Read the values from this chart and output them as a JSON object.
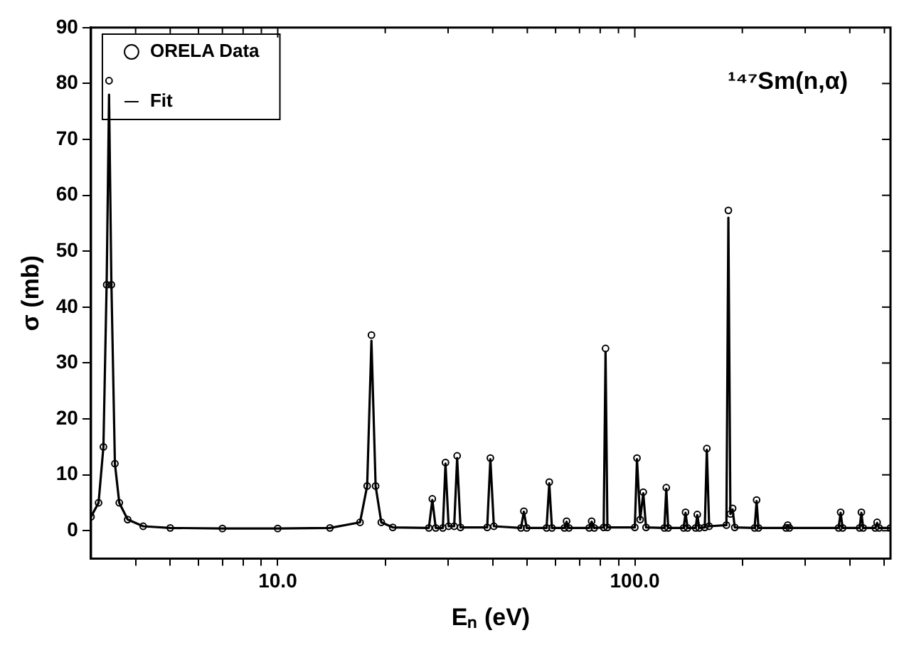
{
  "chart_data": {
    "type": "line",
    "xlabel": "Eₙ (eV)",
    "ylabel": "σ (mb)",
    "annotations": [
      "¹⁴⁷Sm(n,α)"
    ],
    "log": "x",
    "grid": false,
    "legend": "top left",
    "xlim": [
      3,
      520
    ],
    "ylim": [
      -5,
      90
    ],
    "xticks": [
      {
        "value": 4,
        "label": null
      },
      {
        "value": 5,
        "label": null
      },
      {
        "value": 6,
        "label": null
      },
      {
        "value": 7,
        "label": null
      },
      {
        "value": 8,
        "label": null
      },
      {
        "value": 9,
        "label": null
      },
      {
        "value": 10,
        "label": "10.0"
      },
      {
        "value": 20,
        "label": null
      },
      {
        "value": 30,
        "label": null
      },
      {
        "value": 40,
        "label": null
      },
      {
        "value": 50,
        "label": null
      },
      {
        "value": 60,
        "label": null
      },
      {
        "value": 70,
        "label": null
      },
      {
        "value": 80,
        "label": null
      },
      {
        "value": 90,
        "label": null
      },
      {
        "value": 100,
        "label": "100.0"
      },
      {
        "value": 200,
        "label": null
      },
      {
        "value": 300,
        "label": null
      },
      {
        "value": 400,
        "label": null
      },
      {
        "value": 500,
        "label": null
      }
    ],
    "yticks": [
      0,
      10,
      20,
      30,
      40,
      50,
      60,
      70,
      80,
      90
    ],
    "series": [
      {
        "name": "ORELA Data",
        "type": "scatter",
        "marker": "circle",
        "color": "#000000",
        "x": [
          3.0,
          3.15,
          3.25,
          3.32,
          3.37,
          3.42,
          3.5,
          3.6,
          3.8,
          4.2,
          5,
          7,
          10,
          14,
          17,
          17.8,
          18.3,
          18.8,
          19.5,
          21,
          26.5,
          27.1,
          27.7,
          29,
          29.5,
          30.1,
          31.2,
          31.8,
          32.5,
          38.6,
          39.4,
          40.3,
          48,
          48.9,
          49.8,
          56.6,
          57.6,
          58.6,
          63.5,
          64.4,
          65.4,
          74.5,
          75.7,
          77,
          81.8,
          82.8,
          83.8,
          100,
          101.4,
          103.5,
          105.6,
          107.5,
          121,
          122.5,
          124,
          137,
          138.7,
          140.5,
          148,
          149.6,
          151.5,
          157,
          159.1,
          161.5,
          180.5,
          182.8,
          185.2,
          187.9,
          190.5,
          216.5,
          219.3,
          222,
          265,
          268,
          271,
          372,
          377,
          382,
          426,
          431,
          436,
          471,
          477,
          483,
          520
        ],
        "values": [
          2.5,
          5,
          15,
          44,
          80.5,
          44,
          12,
          5,
          2,
          0.8,
          0.5,
          0.4,
          0.4,
          0.5,
          1.5,
          8,
          35,
          8,
          1.5,
          0.6,
          0.5,
          5.7,
          0.5,
          0.5,
          12.2,
          0.8,
          0.8,
          13.4,
          0.6,
          0.6,
          13,
          0.8,
          0.5,
          3.5,
          0.5,
          0.5,
          8.7,
          0.5,
          0.5,
          1.7,
          0.5,
          0.5,
          1.7,
          0.5,
          0.6,
          32.6,
          0.6,
          0.6,
          13,
          2,
          6.9,
          0.6,
          0.5,
          7.7,
          0.5,
          0.5,
          3.3,
          0.5,
          0.5,
          2.9,
          0.5,
          0.6,
          14.7,
          0.8,
          1,
          57.3,
          3,
          4,
          0.6,
          0.5,
          5.5,
          0.5,
          0.5,
          1,
          0.5,
          0.5,
          3.3,
          0.5,
          0.5,
          3.3,
          0.5,
          0.5,
          1.5,
          0.5,
          0.5
        ]
      },
      {
        "name": "Fit",
        "marker": "none",
        "line_style": "solid",
        "color": "#000000",
        "x": [
          3.0,
          3.15,
          3.25,
          3.32,
          3.37,
          3.42,
          3.5,
          3.6,
          3.8,
          4.2,
          5,
          7,
          10,
          14,
          17,
          17.8,
          18.3,
          18.8,
          19.5,
          21,
          26.5,
          27.1,
          27.7,
          29,
          29.5,
          30.1,
          31.2,
          31.8,
          32.5,
          38.6,
          39.4,
          40.3,
          48,
          48.9,
          49.8,
          56.6,
          57.6,
          58.6,
          63.5,
          64.4,
          65.4,
          74.5,
          75.7,
          77,
          81.8,
          82.8,
          83.8,
          100,
          101.4,
          103.5,
          105.6,
          107.5,
          121,
          122.5,
          124,
          137,
          138.7,
          140.5,
          148,
          149.6,
          151.5,
          157,
          159.1,
          161.5,
          180.5,
          182.8,
          185.2,
          187.9,
          190.5,
          216.5,
          219.3,
          222,
          265,
          268,
          271,
          372,
          377,
          382,
          426,
          431,
          436,
          471,
          477,
          483,
          520
        ],
        "values": [
          2.5,
          5,
          15,
          45,
          78,
          45,
          12,
          5,
          2,
          0.8,
          0.5,
          0.4,
          0.4,
          0.5,
          1.5,
          8,
          34,
          8,
          1.5,
          0.6,
          0.5,
          5.5,
          0.5,
          0.5,
          12,
          0.8,
          0.8,
          13,
          0.6,
          0.6,
          12.8,
          0.8,
          0.5,
          3.4,
          0.5,
          0.5,
          8.5,
          0.5,
          0.5,
          1.6,
          0.5,
          0.5,
          1.6,
          0.5,
          0.6,
          32,
          0.6,
          0.6,
          12.8,
          2,
          6.7,
          0.6,
          0.5,
          7.5,
          0.5,
          0.5,
          3.2,
          0.5,
          0.5,
          2.8,
          0.5,
          0.6,
          14.5,
          0.8,
          1,
          56,
          3,
          3.8,
          0.6,
          0.5,
          5.3,
          0.5,
          0.5,
          1,
          0.5,
          0.5,
          3.2,
          0.5,
          0.5,
          3.2,
          0.5,
          0.5,
          1.4,
          0.5,
          0.5
        ]
      }
    ]
  }
}
